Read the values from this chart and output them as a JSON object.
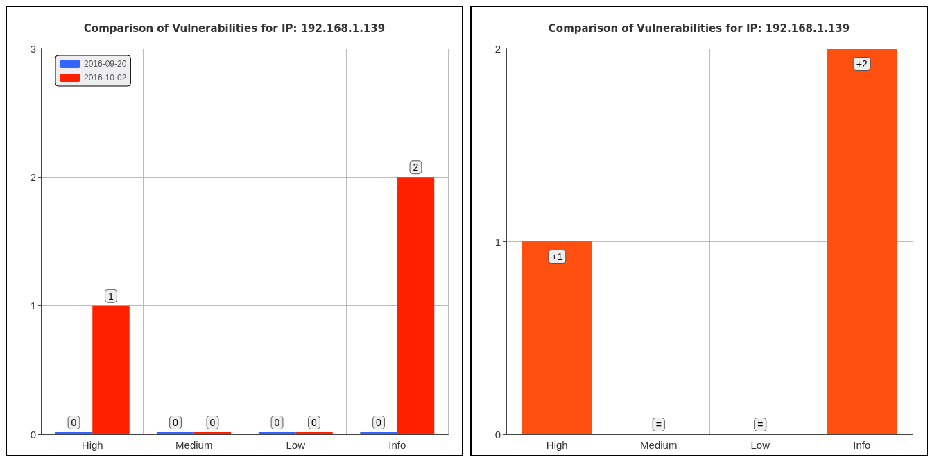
{
  "chart_data": [
    {
      "type": "bar",
      "title": "Comparison of Vulnerabilities for IP: 192.168.1.139",
      "categories": [
        "High",
        "Medium",
        "Low",
        "Info"
      ],
      "series": [
        {
          "name": "2016-09-20",
          "color": "#3366ff",
          "values": [
            0,
            0,
            0,
            0
          ]
        },
        {
          "name": "2016-10-02",
          "color": "#ff2000",
          "values": [
            1,
            0,
            0,
            2
          ]
        }
      ],
      "ylim": [
        0,
        3
      ],
      "yticks": [
        0,
        1,
        2,
        3
      ],
      "grid": true,
      "legend": "top left",
      "data_labels": true
    },
    {
      "type": "bar",
      "title": "Comparison of Vulnerabilities for IP: 192.168.1.139",
      "categories": [
        "High",
        "Medium",
        "Low",
        "Info"
      ],
      "values": [
        1,
        0,
        0,
        2
      ],
      "color": "#ff5010",
      "value_labels": [
        "+1",
        "=",
        "=",
        "+2"
      ],
      "ylim": [
        0,
        2
      ],
      "yticks": [
        0,
        1,
        2
      ],
      "grid": true
    }
  ]
}
